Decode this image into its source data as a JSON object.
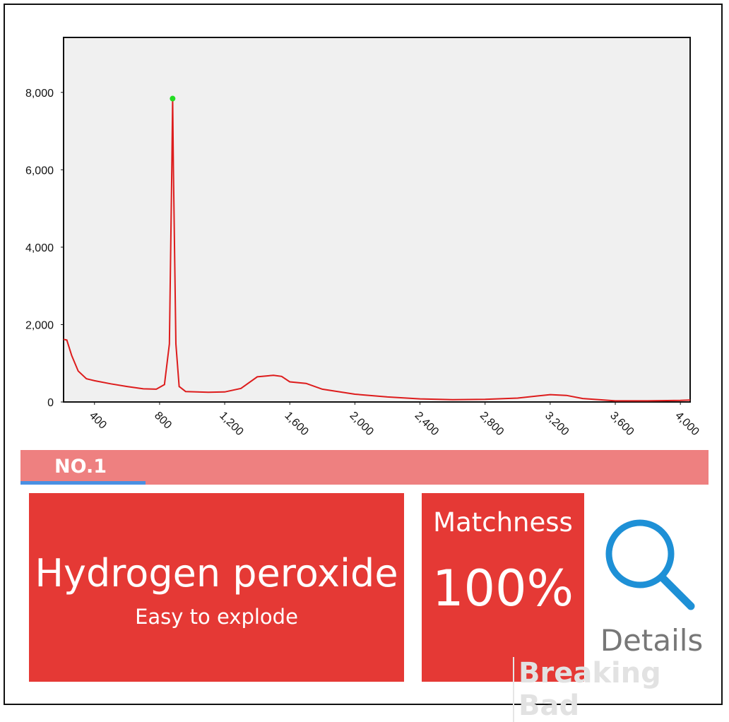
{
  "chart_data": {
    "type": "line",
    "x": [
      210,
      230,
      260,
      300,
      350,
      400,
      500,
      600,
      700,
      780,
      830,
      860,
      875,
      880,
      885,
      900,
      920,
      960,
      1100,
      1200,
      1300,
      1400,
      1500,
      1550,
      1600,
      1700,
      1800,
      2000,
      2200,
      2400,
      2600,
      2800,
      3000,
      3200,
      3300,
      3400,
      3600,
      3800,
      4000,
      4060
    ],
    "series": [
      {
        "color": "#dd1c1c",
        "values": [
          1620,
          1600,
          1200,
          800,
          600,
          550,
          470,
          400,
          340,
          330,
          450,
          1500,
          6000,
          7840,
          6000,
          1500,
          400,
          270,
          250,
          260,
          350,
          650,
          690,
          660,
          520,
          480,
          330,
          200,
          130,
          80,
          60,
          70,
          100,
          190,
          170,
          90,
          30,
          30,
          40,
          50
        ]
      }
    ],
    "peak_color": "#22dd22",
    "xlim": [
      210,
      4060
    ],
    "ylim": [
      0,
      9420
    ],
    "xticks": [
      400,
      800,
      {
        "value": 1200,
        "label": "1,200"
      },
      {
        "value": 1600,
        "label": "1,600"
      },
      {
        "value": 2000,
        "label": "2,000"
      },
      {
        "value": 2400,
        "label": "2,400"
      },
      {
        "value": 2800,
        "label": "2,800"
      },
      {
        "value": 3200,
        "label": "3,200"
      },
      {
        "value": 3600,
        "label": "3,600"
      },
      {
        "value": 4000,
        "label": "4,000"
      }
    ],
    "yticks": [
      0,
      {
        "value": 2000,
        "label": "2,000"
      },
      {
        "value": 4000,
        "label": "4,000"
      },
      {
        "value": 6000,
        "label": "6,000"
      },
      {
        "value": 8000,
        "label": "8,000"
      }
    ]
  },
  "tab": {
    "label": "NO.1"
  },
  "result": {
    "name": "Hydrogen peroxide",
    "note": "Easy to explode",
    "match_label": "Matchness",
    "match_value": "100%",
    "details": "Details",
    "watermark": "Breaking Bad"
  }
}
